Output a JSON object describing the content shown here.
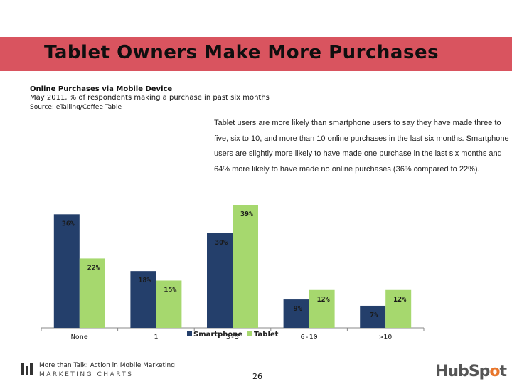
{
  "slide": {
    "title": "Tablet Owners Make More Purchases",
    "subtitle": "Online Purchases via Mobile Device",
    "subtitle2": "May 2011, % of respondents making a purchase in past six months",
    "source": "Source: eTailing/Coffee Table",
    "description": "Tablet users are more likely than smartphone users to say they have made three to five, six to 10, and more than 10 online purchases in the last six months. Smartphone users are slightly more likely to have made one purchase in the last six months and 64% more likely to have made no online purchases (36% compared to 22%).",
    "footer_text": "More than Talk: Action in Mobile Marketing",
    "footer_brand": "MARKETING CHARTS",
    "page_number": "26",
    "logo_prefix": "HubSp",
    "logo_o": "o",
    "logo_suffix": "t"
  },
  "colors": {
    "smartphone": "#243f6b",
    "tablet": "#a6d86e",
    "title_bar": "#d9545f"
  },
  "chart_data": {
    "type": "bar",
    "categories": [
      "None",
      "1",
      "3-5",
      "6-10",
      ">10"
    ],
    "series": [
      {
        "name": "Smartphone",
        "values": [
          36,
          18,
          30,
          9,
          7
        ]
      },
      {
        "name": "Tablet",
        "values": [
          22,
          15,
          39,
          12,
          12
        ]
      }
    ],
    "data_labels": [
      [
        "36%",
        "18%",
        "30%",
        "9%",
        "7%"
      ],
      [
        "22%",
        "15%",
        "39%",
        "12%",
        "12%"
      ]
    ],
    "legend_position": "inside-bottom-center",
    "ylim": [
      0,
      40
    ],
    "grid": false
  }
}
